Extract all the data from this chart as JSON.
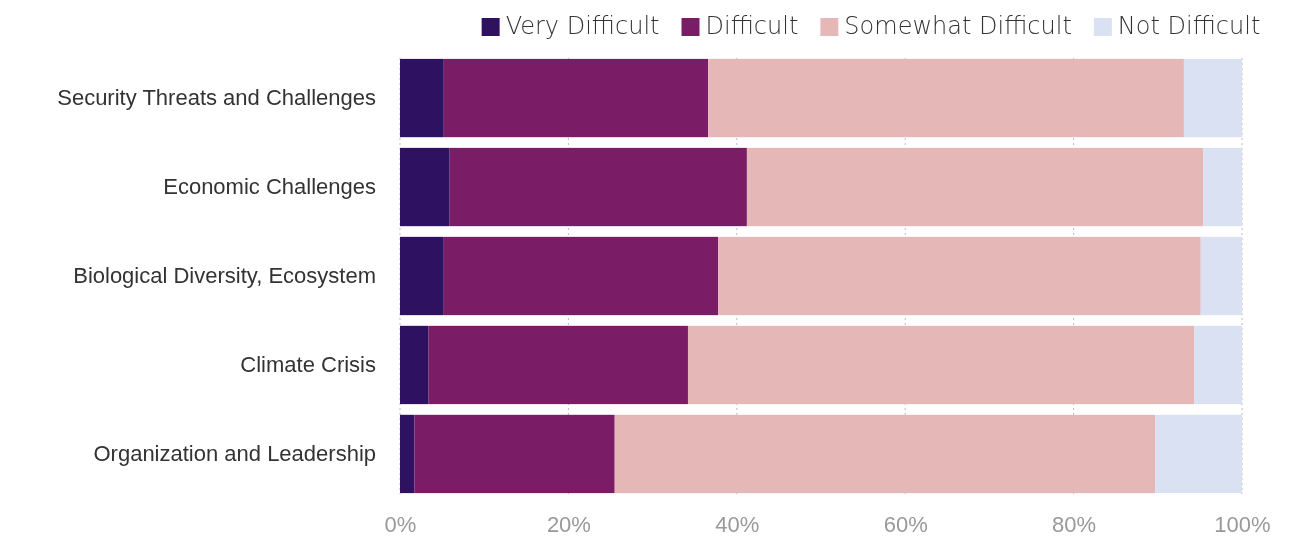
{
  "chart_data": {
    "type": "bar",
    "orientation": "horizontal",
    "stacked": true,
    "categories": [
      "Security Threats and Challenges",
      "Economic Challenges",
      "Biological Diversity, Ecosystem",
      "Climate Crisis",
      "Organization and Leadership"
    ],
    "series": [
      {
        "name": "Very Difficult",
        "color": "#2e1261",
        "values": [
          5.2,
          5.9,
          5.2,
          3.4,
          1.7
        ]
      },
      {
        "name": "Difficult",
        "color": "#7b1c67",
        "values": [
          31.4,
          35.3,
          32.6,
          30.8,
          23.8
        ]
      },
      {
        "name": "Somewhat Difficult",
        "color": "#e5b8b7",
        "values": [
          56.5,
          54.2,
          57.3,
          60.1,
          64.2
        ]
      },
      {
        "name": "Not Difficult",
        "color": "#d9e1f2",
        "values": [
          6.9,
          4.6,
          4.9,
          5.7,
          10.3
        ]
      }
    ],
    "xlim": [
      0,
      100
    ],
    "xticks": [
      {
        "value": 0,
        "label": "0%"
      },
      {
        "value": 20,
        "label": "20%"
      },
      {
        "value": 40,
        "label": "40%"
      },
      {
        "value": 60,
        "label": "60%"
      },
      {
        "value": 80,
        "label": "80%"
      },
      {
        "value": 100,
        "label": "100%"
      }
    ],
    "grid": "x",
    "legend": "top"
  }
}
